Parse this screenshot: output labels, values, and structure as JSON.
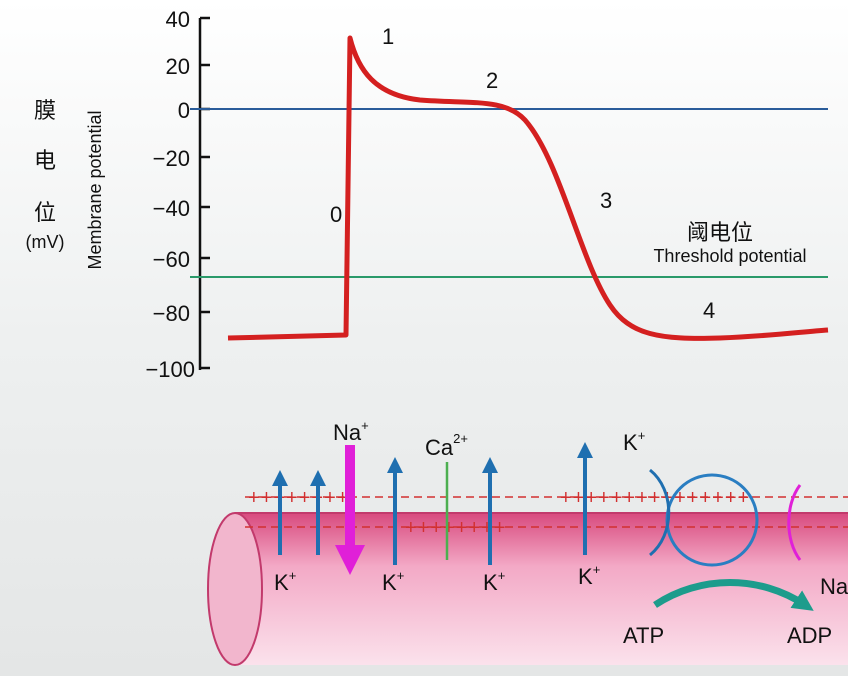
{
  "graph": {
    "y_axis": {
      "label_cn": [
        "膜",
        "电",
        "位"
      ],
      "unit": "(mV)",
      "label": "Membrane potential",
      "ticks": [
        "40",
        "20",
        "0",
        "−20",
        "−40",
        "−60",
        "−80",
        "−100"
      ]
    },
    "phases": [
      "0",
      "1",
      "2",
      "3",
      "4"
    ],
    "threshold": {
      "label_cn": "阈电位",
      "label": "Threshold potential"
    }
  },
  "membrane": {
    "top_ions": [
      {
        "symbol": "Na",
        "charge": "+"
      },
      {
        "symbol": "Ca",
        "charge": "2+"
      },
      {
        "symbol": "K",
        "charge": "+"
      }
    ],
    "bottom_ions": [
      {
        "symbol": "K",
        "charge": "+"
      },
      {
        "symbol": "K",
        "charge": "+"
      },
      {
        "symbol": "K",
        "charge": "+"
      },
      {
        "symbol": "K",
        "charge": "+"
      },
      {
        "symbol": "Na"
      }
    ],
    "atp": "ATP",
    "adp": "ADP"
  }
}
